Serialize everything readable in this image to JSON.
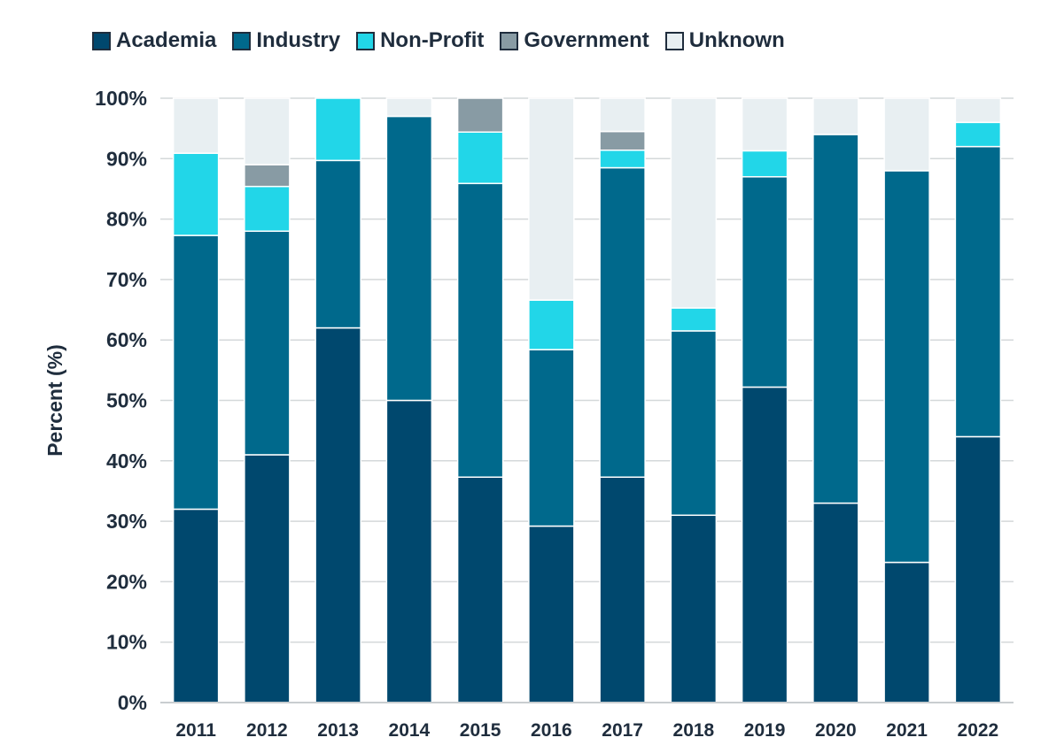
{
  "chart_data": {
    "type": "bar",
    "stacked": true,
    "ylabel": "Percent (%)",
    "xlabel": "",
    "ylim": [
      0,
      100
    ],
    "yticks": [
      "0%",
      "10%",
      "20%",
      "30%",
      "40%",
      "50%",
      "60%",
      "70%",
      "80%",
      "90%",
      "100%"
    ],
    "grid": true,
    "legend_position": "top",
    "categories": [
      "2011",
      "2012",
      "2013",
      "2014",
      "2015",
      "2016",
      "2017",
      "2018",
      "2019",
      "2020",
      "2021",
      "2022"
    ],
    "series": [
      {
        "name": "Academia",
        "color": "#00486e",
        "values": [
          32,
          41,
          62,
          50,
          37.3,
          29.2,
          37.3,
          31,
          52.2,
          33,
          23.2,
          44
        ]
      },
      {
        "name": "Industry",
        "color": "#00698c",
        "values": [
          45.3,
          37,
          27.7,
          47,
          48.6,
          29.2,
          51.2,
          30.5,
          34.8,
          61,
          64.8,
          48
        ]
      },
      {
        "name": "Non-Profit",
        "color": "#22d6e8",
        "values": [
          13.6,
          7.4,
          10.3,
          0,
          8.5,
          8.2,
          2.9,
          3.8,
          4.3,
          0,
          0,
          4
        ]
      },
      {
        "name": "Government",
        "color": "#889ba4",
        "values": [
          0,
          3.6,
          0,
          0,
          5.6,
          0,
          3.1,
          0,
          0,
          0,
          0,
          0
        ]
      },
      {
        "name": "Unknown",
        "color": "#e8eff2",
        "values": [
          9.1,
          11,
          0,
          3,
          0,
          33.4,
          5.5,
          34.7,
          8.7,
          6,
          12,
          4
        ]
      }
    ]
  }
}
